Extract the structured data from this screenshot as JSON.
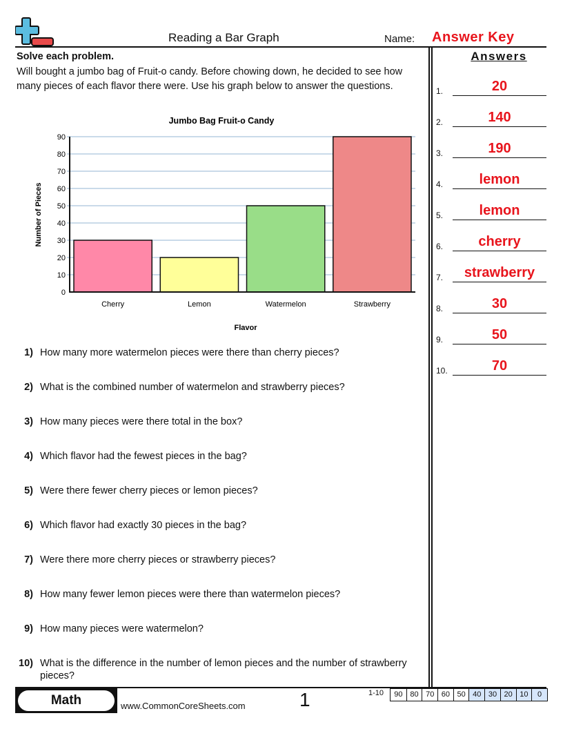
{
  "header": {
    "title": "Reading a Bar Graph",
    "name_label": "Name:",
    "name_value": "Answer Key"
  },
  "instructions": {
    "heading": "Solve each problem.",
    "body": "Will bought a jumbo bag of Fruit-o candy. Before chowing down, he decided to see how many pieces of each flavor there were. Use his graph below to answer the questions."
  },
  "chart_data": {
    "type": "bar",
    "title": "Jumbo Bag Fruit-o Candy",
    "xlabel": "Flavor",
    "ylabel": "Number of Pieces",
    "categories": [
      "Cherry",
      "Lemon",
      "Watermelon",
      "Strawberry"
    ],
    "values": [
      30,
      20,
      50,
      90
    ],
    "colors": [
      "#ff88a8",
      "#ffff99",
      "#99dd88",
      "#ee8888"
    ],
    "ylim": [
      0,
      90
    ],
    "yticks": [
      0,
      10,
      20,
      30,
      40,
      50,
      60,
      70,
      80,
      90
    ],
    "grid": true,
    "grid_color": "#a9c4dc"
  },
  "questions": [
    {
      "num": "1)",
      "text": "How many more watermelon pieces were there than cherry pieces?"
    },
    {
      "num": "2)",
      "text": "What is the combined number of watermelon and strawberry pieces?"
    },
    {
      "num": "3)",
      "text": "How many pieces were there total in the box?"
    },
    {
      "num": "4)",
      "text": "Which flavor had the fewest pieces in the bag?"
    },
    {
      "num": "5)",
      "text": "Were there fewer cherry pieces or lemon pieces?"
    },
    {
      "num": "6)",
      "text": "Which flavor had exactly 30 pieces in the bag?"
    },
    {
      "num": "7)",
      "text": "Were there more cherry pieces or strawberry pieces?"
    },
    {
      "num": "8)",
      "text": "How many fewer lemon pieces were there than watermelon pieces?"
    },
    {
      "num": "9)",
      "text": "How many pieces were watermelon?"
    },
    {
      "num": "10)",
      "text": "What is the difference in the number of lemon pieces and the number of strawberry pieces?"
    }
  ],
  "answers": {
    "title": "Answers",
    "items": [
      {
        "num": "1.",
        "value": "20"
      },
      {
        "num": "2.",
        "value": "140"
      },
      {
        "num": "3.",
        "value": "190"
      },
      {
        "num": "4.",
        "value": "lemon"
      },
      {
        "num": "5.",
        "value": "lemon"
      },
      {
        "num": "6.",
        "value": "cherry"
      },
      {
        "num": "7.",
        "value": "strawberry"
      },
      {
        "num": "8.",
        "value": "30"
      },
      {
        "num": "9.",
        "value": "50"
      },
      {
        "num": "10.",
        "value": "70"
      }
    ]
  },
  "footer": {
    "subject": "Math",
    "website": "www.CommonCoreSheets.com",
    "page": "1",
    "range": "1-10",
    "scores": [
      "90",
      "80",
      "70",
      "60",
      "50",
      "40",
      "30",
      "20",
      "10",
      "0"
    ]
  },
  "colors": {
    "accent_red": "#e8141c",
    "logo_blue": "#5bbde0",
    "logo_red": "#e84a4a",
    "score_highlight": "#d6e6fb"
  }
}
